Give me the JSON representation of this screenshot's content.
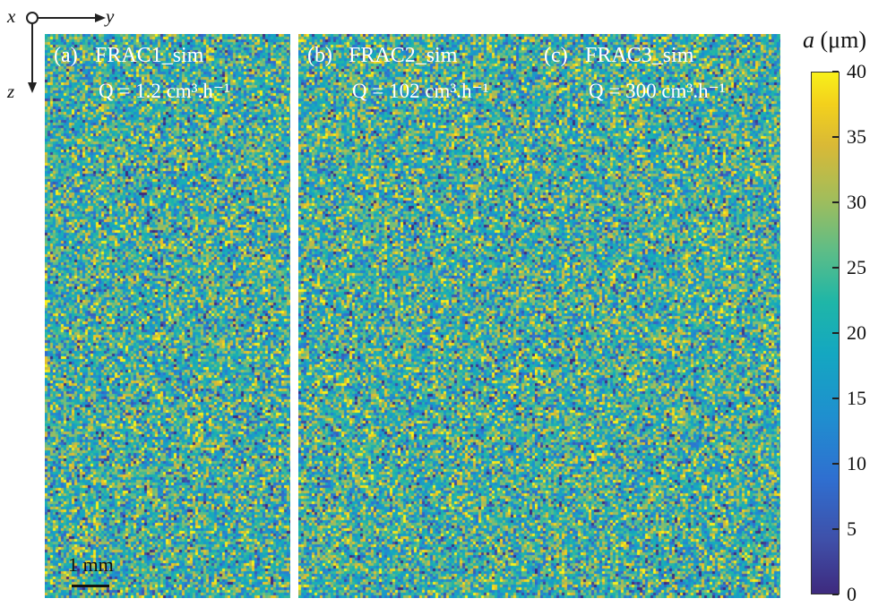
{
  "axes_indicator": {
    "x": "x",
    "y": "y",
    "z": "z"
  },
  "panels": [
    {
      "label": "(a)",
      "name": "FRAC1_sim",
      "flow": "Q = 1.2 cm³.h⁻¹"
    },
    {
      "label": "(b)",
      "name": "FRAC2_sim",
      "flow": "Q = 102 cm³.h⁻¹"
    },
    {
      "label": "(c)",
      "name": "FRAC3_sim",
      "flow": "Q = 300 cm³.h⁻¹"
    }
  ],
  "scalebar": {
    "label": "1 mm"
  },
  "colormap": {
    "low": "#3e2a7e",
    "mid": "#1fb6a7",
    "high": "#f8f01a"
  },
  "chart_data": {
    "type": "heatmap",
    "title": "",
    "colorbar": {
      "label_symbol": "a",
      "label_unit": "(μm)",
      "range": [
        0,
        40
      ],
      "ticks": [
        "0",
        "5",
        "10",
        "15",
        "20",
        "25",
        "30",
        "35",
        "40"
      ]
    },
    "series": [
      {
        "name": "FRAC1_sim",
        "Q": "1.2 cm³.h⁻¹",
        "mean_value": 22
      },
      {
        "name": "FRAC2_sim",
        "Q": "102 cm³.h⁻¹",
        "mean_value": 22
      },
      {
        "name": "FRAC3_sim",
        "Q": "300 cm³.h⁻¹",
        "mean_value": 22
      }
    ]
  }
}
